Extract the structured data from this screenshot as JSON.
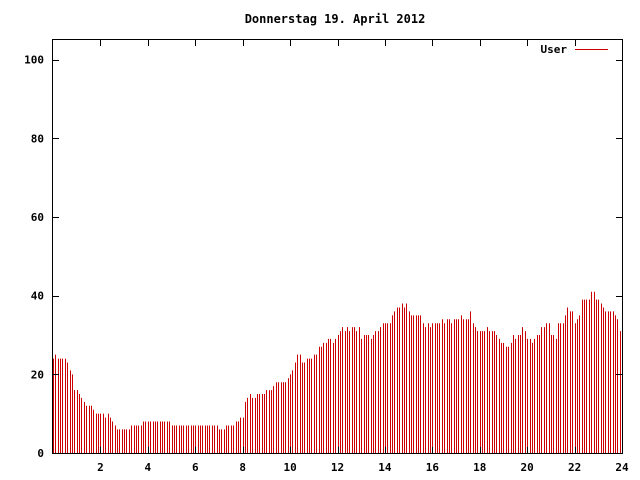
{
  "chart_data": {
    "type": "bar",
    "title": "Donnerstag 19. April 2012",
    "xlabel": "",
    "ylabel": "",
    "xlim": [
      0,
      24
    ],
    "ylim": [
      0,
      105
    ],
    "xticks": [
      2,
      4,
      6,
      8,
      10,
      12,
      14,
      16,
      18,
      20,
      22,
      24
    ],
    "yticks": [
      0,
      20,
      40,
      60,
      80,
      100
    ],
    "grid": false,
    "legend_position": "top-right",
    "colors": {
      "series": "#cc0000",
      "axes": "#000000",
      "background": "#ffffff"
    },
    "series": [
      {
        "name": "User",
        "x_start": 0,
        "x_step": 0.1,
        "values": [
          24,
          25,
          24,
          24,
          24,
          24,
          23,
          21,
          20,
          16,
          16,
          15,
          14,
          13,
          12,
          12,
          12,
          11,
          10,
          10,
          10,
          10,
          9,
          10,
          9,
          8,
          7,
          6,
          6,
          6,
          6,
          6,
          6,
          7,
          7,
          7,
          7,
          7,
          8,
          8,
          8,
          8,
          8,
          8,
          8,
          8,
          8,
          8,
          8,
          8,
          7,
          7,
          7,
          7,
          7,
          7,
          7,
          7,
          7,
          7,
          7,
          7,
          7,
          7,
          7,
          7,
          7,
          7,
          7,
          7,
          6,
          6,
          6,
          7,
          7,
          7,
          7,
          8,
          8,
          9,
          9,
          13,
          14,
          15,
          14,
          14,
          15,
          15,
          15,
          15,
          16,
          16,
          16,
          17,
          18,
          18,
          18,
          18,
          18,
          19,
          20,
          21,
          23,
          25,
          25,
          23,
          23,
          24,
          24,
          24,
          25,
          25,
          27,
          27,
          28,
          28,
          29,
          29,
          28,
          29,
          30,
          31,
          32,
          31,
          32,
          31,
          32,
          32,
          31,
          32,
          29,
          30,
          30,
          30,
          29,
          30,
          31,
          31,
          32,
          33,
          33,
          33,
          33,
          35,
          36,
          37,
          37,
          38,
          37,
          38,
          36,
          35,
          35,
          35,
          35,
          35,
          33,
          32,
          33,
          32,
          33,
          33,
          33,
          33,
          34,
          33,
          34,
          34,
          33,
          34,
          34,
          34,
          35,
          34,
          34,
          34,
          36,
          33,
          32,
          31,
          31,
          31,
          31,
          32,
          31,
          31,
          31,
          30,
          29,
          28,
          28,
          27,
          27,
          28,
          30,
          29,
          30,
          30,
          32,
          31,
          29,
          29,
          28,
          29,
          30,
          30,
          32,
          32,
          33,
          33,
          30,
          30,
          29,
          33,
          33,
          33,
          35,
          37,
          36,
          36,
          33,
          34,
          35,
          39,
          39,
          39,
          39,
          41,
          41,
          39,
          39,
          38,
          37,
          36,
          36,
          36,
          36,
          35,
          34,
          31,
          28
        ]
      }
    ]
  }
}
